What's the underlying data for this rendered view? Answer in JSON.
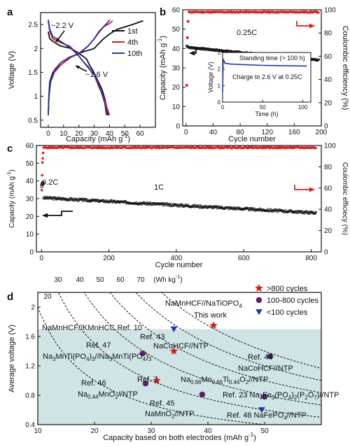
{
  "panel_labels": {
    "a": "a",
    "b": "b",
    "c": "c",
    "d": "d"
  },
  "chart_data": [
    {
      "panel": "a",
      "type": "line",
      "xlabel": "Capacity (mAh g",
      "xlabel_sup": "-1",
      "xlabel_close": ")",
      "ylabel": "Voltage (V)",
      "xlim": [
        -5,
        70
      ],
      "ylim": [
        0.35,
        2.75
      ],
      "xticks": [
        0,
        10,
        20,
        30,
        40,
        50,
        60
      ],
      "yticks": [
        0.5,
        1.0,
        1.5,
        2.0,
        2.5
      ],
      "legend": "top-right",
      "annotations": [
        "~2.2 V",
        "~1.6 V"
      ],
      "series": [
        {
          "name": "1st",
          "color": "#111111",
          "charge": [
            [
              0,
              0.6
            ],
            [
              0.4,
              1.0
            ],
            [
              1,
              1.3
            ],
            [
              3,
              1.5
            ],
            [
              6,
              1.6
            ],
            [
              10,
              1.7
            ],
            [
              15,
              1.82
            ],
            [
              20,
              1.9
            ],
            [
              25,
              1.95
            ],
            [
              30,
              2.0
            ],
            [
              33,
              2.1
            ],
            [
              36,
              2.2
            ],
            [
              40,
              2.3
            ],
            [
              45,
              2.4
            ],
            [
              55,
              2.5
            ],
            [
              62,
              2.58
            ]
          ],
          "discharge": [
            [
              0,
              2.35
            ],
            [
              1,
              2.2
            ],
            [
              3,
              2.15
            ],
            [
              8,
              2.05
            ],
            [
              15,
              2.0
            ],
            [
              20,
              1.9
            ],
            [
              25,
              1.78
            ],
            [
              27,
              1.65
            ],
            [
              29,
              1.55
            ],
            [
              32,
              1.35
            ],
            [
              35,
              1.15
            ],
            [
              37,
              0.95
            ],
            [
              38,
              0.8
            ],
            [
              39,
              0.6
            ]
          ]
        },
        {
          "name": "4th",
          "color": "#dd1a1a",
          "charge": [
            [
              0,
              0.6
            ],
            [
              0.5,
              1.0
            ],
            [
              1.5,
              1.3
            ],
            [
              4,
              1.5
            ],
            [
              8,
              1.65
            ],
            [
              14,
              1.8
            ],
            [
              20,
              1.9
            ],
            [
              26,
              2.05
            ],
            [
              30,
              2.2
            ],
            [
              33,
              2.35
            ],
            [
              36,
              2.45
            ],
            [
              40,
              2.52
            ],
            [
              42,
              2.58
            ]
          ],
          "discharge": [
            [
              0,
              2.58
            ],
            [
              1,
              2.35
            ],
            [
              3,
              2.2
            ],
            [
              8,
              2.12
            ],
            [
              14,
              2.05
            ],
            [
              19,
              1.88
            ],
            [
              23,
              1.72
            ],
            [
              26,
              1.6
            ],
            [
              30,
              1.45
            ],
            [
              33,
              1.2
            ],
            [
              36,
              1.0
            ],
            [
              38,
              0.8
            ],
            [
              40,
              0.6
            ]
          ]
        },
        {
          "name": "10th",
          "color": "#1f35b5",
          "charge": [
            [
              0,
              0.6
            ],
            [
              0.5,
              1.0
            ],
            [
              1.5,
              1.3
            ],
            [
              4,
              1.55
            ],
            [
              8,
              1.7
            ],
            [
              14,
              1.82
            ],
            [
              20,
              1.88
            ],
            [
              26,
              2.05
            ],
            [
              30,
              2.2
            ],
            [
              33,
              2.33
            ],
            [
              36,
              2.45
            ],
            [
              39,
              2.55
            ],
            [
              40,
              2.6
            ]
          ],
          "discharge": [
            [
              0,
              2.6
            ],
            [
              1,
              2.4
            ],
            [
              3,
              2.25
            ],
            [
              8,
              2.15
            ],
            [
              14,
              2.02
            ],
            [
              19,
              1.88
            ],
            [
              23,
              1.72
            ],
            [
              26,
              1.62
            ],
            [
              30,
              1.45
            ],
            [
              33,
              1.25
            ],
            [
              35,
              1.05
            ],
            [
              37,
              0.85
            ],
            [
              38,
              0.6
            ]
          ]
        }
      ]
    },
    {
      "panel": "b",
      "type": "scatter",
      "xlabel": "Cycle number",
      "ylabel": "Capacity (mAh g",
      "ylabel_sup": "-1",
      "ylabel_close": ")",
      "y2label": "Coulombic efficiency (%)",
      "xlim": [
        -5,
        200
      ],
      "ylim": [
        0,
        60
      ],
      "y2lim": [
        0,
        100
      ],
      "xticks": [
        0,
        40,
        80,
        120,
        160,
        200
      ],
      "yticks": [
        0,
        10,
        20,
        30,
        40,
        50,
        60
      ],
      "y2ticks": [
        0,
        20,
        40,
        60,
        80,
        100
      ],
      "annotations": [
        "0.25C"
      ],
      "series": [
        {
          "name": "Capacity",
          "axis": "left",
          "color": "#111111",
          "start": 41.5,
          "peak_cycle": 5,
          "peak": 40.5,
          "end": 34.0
        },
        {
          "name": "Coulombic efficiency",
          "axis": "right",
          "color": "#e8191d",
          "first": [
            [
              1,
              35
            ],
            [
              2,
              76
            ],
            [
              3,
              90
            ]
          ],
          "level": 98
        }
      ],
      "inset": {
        "xlabel": "Time (h)",
        "ylabel": "Voltage (V)",
        "xlim": [
          0,
          110
        ],
        "ylim": [
          0,
          3
        ],
        "xticks": [
          0,
          50,
          100
        ],
        "yticks": [
          0,
          1,
          2,
          3
        ],
        "annotations": [
          "Standing time (> 100 h)",
          "Charge to 2.6 V at 0.25C"
        ],
        "series": [
          {
            "name": "Voltage",
            "color": "#1f35b5",
            "points": [
              [
                0,
                0.6
              ],
              [
                0.8,
                2.6
              ],
              [
                3,
                2.35
              ],
              [
                10,
                2.3
              ],
              [
                50,
                2.22
              ],
              [
                105,
                2.18
              ]
            ]
          }
        ]
      }
    },
    {
      "panel": "c",
      "type": "scatter",
      "xlabel": "Cycle number",
      "ylabel": "Capacity (mAh g",
      "ylabel_sup": "-1",
      "ylabel_close": ")",
      "y2label": "Coulombic efficiecy (%)",
      "xlim": [
        -15,
        830
      ],
      "ylim": [
        0,
        60
      ],
      "y2lim": [
        0,
        100
      ],
      "xticks": [
        0,
        200,
        400,
        600,
        800
      ],
      "yticks": [
        0,
        10,
        20,
        30,
        40,
        50,
        60
      ],
      "y2ticks": [
        0,
        20,
        40,
        60,
        80,
        100
      ],
      "annotations": [
        "0.2C",
        "1C"
      ],
      "series": [
        {
          "name": "Capacity 0.2C",
          "axis": "left",
          "color": "#111111",
          "points": [
            [
              1,
              37
            ],
            [
              2,
              38
            ],
            [
              3,
              38.5
            ],
            [
              4,
              39
            ],
            [
              5,
              38.5
            ]
          ]
        },
        {
          "name": "Capacity 1C",
          "axis": "left",
          "color": "#111111",
          "start": 30.5,
          "end": 22.0
        },
        {
          "name": "Coulombic efficiency",
          "axis": "right",
          "color": "#e8191d",
          "first": [
            [
              1,
              58
            ],
            [
              2,
              72
            ],
            [
              3,
              84
            ],
            [
              4,
              88
            ],
            [
              5,
              93
            ]
          ],
          "level": 98
        }
      ]
    },
    {
      "panel": "d",
      "type": "scatter",
      "xlabel": "Capacity based on both electrodes (mAh g",
      "xlabel_sup": "-1",
      "xlabel_close": ")",
      "ylabel": "Average voltage (V)",
      "xlim": [
        10,
        60
      ],
      "ylim": [
        0.4,
        2.2
      ],
      "xticks": [
        10,
        20,
        30,
        40,
        50
      ],
      "yticks": [
        0.4,
        0.8,
        1.2,
        1.6,
        2.0
      ],
      "shaded_below_voltage": 1.7,
      "energy_label": "(Wh kg",
      "energy_label_sup": "-1",
      "energy_label_close": ")",
      "energy_density_lines": [
        20,
        30,
        40,
        50,
        60,
        70
      ],
      "legend": "top-right",
      "legend_entries": [
        {
          "label": ">800 cycles",
          "marker": "star",
          "color": "#dd1a1a"
        },
        {
          "label": "100-800 cycles",
          "marker": "circle",
          "color": "#5a1f6e"
        },
        {
          "label": "<100 cycles",
          "marker": "triangle",
          "color": "#1f35b5"
        }
      ],
      "points": [
        {
          "x": 41.0,
          "y": 1.75,
          "marker": "star",
          "color": "#dd1a1a",
          "this_work": true
        },
        {
          "x": 34.0,
          "y": 1.4,
          "marker": "star",
          "color": "#dd1a1a"
        },
        {
          "x": 31.0,
          "y": 1.0,
          "marker": "star",
          "color": "#dd1a1a"
        },
        {
          "x": 34.0,
          "y": 1.7,
          "marker": "triangle",
          "color": "#1f35b5"
        },
        {
          "x": 49.5,
          "y": 0.6,
          "marker": "triangle",
          "color": "#1f35b5"
        },
        {
          "x": 28.5,
          "y": 1.37,
          "marker": "circle",
          "color": "#5a1f6e"
        },
        {
          "x": 29.0,
          "y": 0.96,
          "marker": "circle",
          "color": "#5a1f6e"
        },
        {
          "x": 39.0,
          "y": 0.81,
          "marker": "circle",
          "color": "#5a1f6e"
        },
        {
          "x": 50.0,
          "y": 0.78,
          "marker": "circle",
          "color": "#5a1f6e"
        },
        {
          "x": 51.0,
          "y": 1.33,
          "marker": "circle",
          "color": "#5a1f6e"
        }
      ],
      "labels": {
        "this_work_material": [
          [
            "NaMnHCF//NaTiOPO",
            "base"
          ],
          [
            "4",
            "sub"
          ]
        ],
        "this_work": "This work",
        "ref10": "NaMnHCF//KMnHCC Ref. 10",
        "ref43": "Ref. 43",
        "nacuhcf": "NaCuHCF//NTP",
        "ref47": "Ref. 47",
        "ref44": "Ref. 44",
        "nacohcf": "NaCoHCF//NTP",
        "na3mnti": [
          [
            "Na",
            "base"
          ],
          [
            "3",
            "sub"
          ],
          [
            "MnTi(PO",
            "base"
          ],
          [
            "4",
            "sub"
          ],
          [
            ")",
            "base"
          ],
          [
            "3",
            "sub"
          ],
          [
            "//Na",
            "base"
          ],
          [
            "3",
            "sub"
          ],
          [
            "MnTi(PO",
            "base"
          ],
          [
            "4",
            "sub"
          ],
          [
            ")",
            "base"
          ],
          [
            "3",
            "sub"
          ]
        ],
        "ref7": "Ref. 7",
        "na066": [
          [
            "Na",
            "base"
          ],
          [
            "0.66",
            "sub"
          ],
          [
            "Mn",
            "base"
          ],
          [
            "0.66",
            "sub"
          ],
          [
            "Ti",
            "base"
          ],
          [
            "0.44",
            "sub"
          ],
          [
            "O",
            "base"
          ],
          [
            "2",
            "sub"
          ],
          [
            "//NTP",
            "base"
          ]
        ],
        "ref46": "Ref. 46",
        "na044": [
          [
            "Na",
            "base"
          ],
          [
            "0.44",
            "sub"
          ],
          [
            "MnO",
            "base"
          ],
          [
            "2",
            "sub"
          ],
          [
            "//NTP",
            "base"
          ]
        ],
        "ref45": "Ref. 45",
        "namno": [
          [
            "NaMnO",
            "base"
          ],
          [
            "2",
            "sub"
          ],
          [
            "//NTP",
            "base"
          ]
        ],
        "ref23": [
          [
            "Ref. 23 Na",
            "base"
          ],
          [
            "4",
            "sub"
          ],
          [
            "Fe",
            "base"
          ],
          [
            "3",
            "sub"
          ],
          [
            "(PO",
            "base"
          ],
          [
            "4",
            "sub"
          ],
          [
            ")",
            "base"
          ],
          [
            "2",
            "sub"
          ],
          [
            "(P",
            "base"
          ],
          [
            "2",
            "sub"
          ],
          [
            "O",
            "base"
          ],
          [
            "7",
            "sub"
          ],
          [
            ")//NTP",
            "base"
          ]
        ],
        "ref48": [
          [
            "Ref. 48 NaFePO",
            "base"
          ],
          [
            "4",
            "sub"
          ],
          [
            "//NTP",
            "base"
          ]
        ]
      }
    }
  ]
}
